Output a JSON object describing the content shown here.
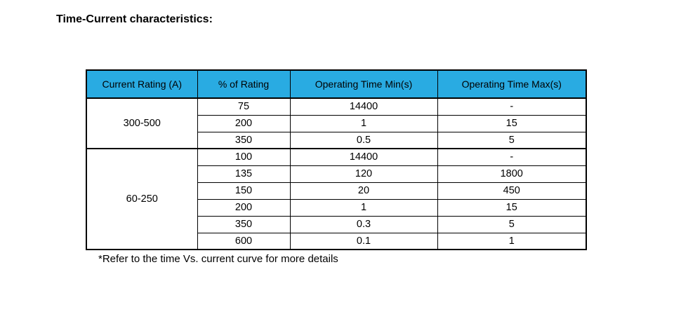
{
  "page": {
    "title": "Time-Current characteristics:",
    "footnote": "*Refer to the time Vs. current curve for more details"
  },
  "colors": {
    "header_bg": "#29ABE2",
    "border": "#000000",
    "text": "#000000"
  },
  "table": {
    "headers": [
      "Current Rating (A)",
      "% of Rating",
      "Operating Time Min(s)",
      "Operating Time Max(s)"
    ],
    "groups": [
      {
        "rating": "300-500",
        "rows": [
          {
            "percent": "75",
            "min": "14400",
            "max": "-"
          },
          {
            "percent": "200",
            "min": "1",
            "max": "15"
          },
          {
            "percent": "350",
            "min": "0.5",
            "max": "5"
          }
        ]
      },
      {
        "rating": "60-250",
        "rows": [
          {
            "percent": "100",
            "min": "14400",
            "max": "-"
          },
          {
            "percent": "135",
            "min": "120",
            "max": "1800"
          },
          {
            "percent": "150",
            "min": "20",
            "max": "450"
          },
          {
            "percent": "200",
            "min": "1",
            "max": "15"
          },
          {
            "percent": "350",
            "min": "0.3",
            "max": "5"
          },
          {
            "percent": "600",
            "min": "0.1",
            "max": "1"
          }
        ]
      }
    ]
  }
}
